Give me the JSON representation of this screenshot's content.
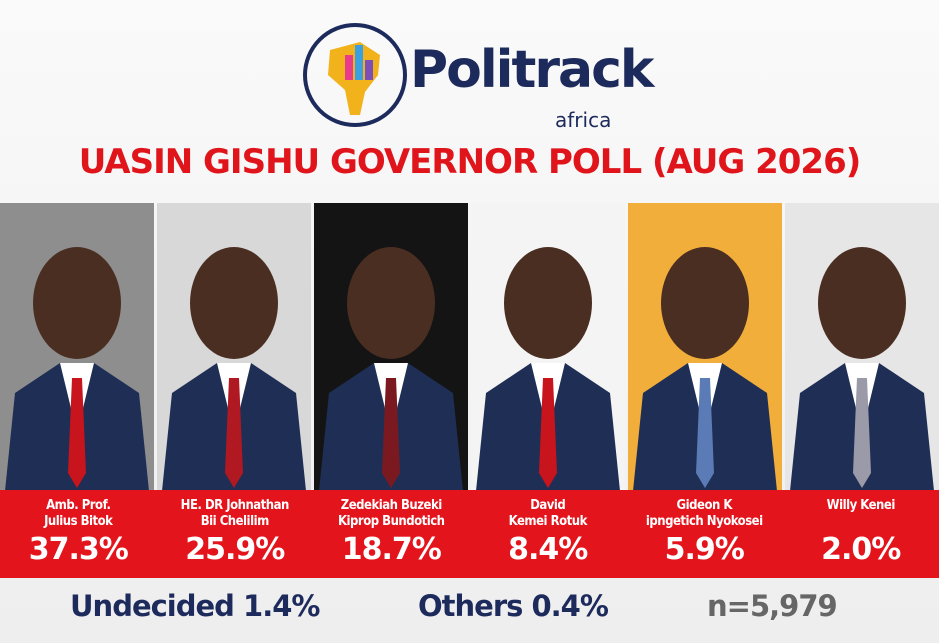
{
  "header": {
    "brand": "Politrack",
    "brand_sub": "africa",
    "title": "UASIN GISHU GOVERNOR POLL (AUG 2026)"
  },
  "candidates": [
    {
      "name": [
        "Amb. Prof.",
        "Julius Bitok"
      ],
      "share": "37.3%"
    },
    {
      "name": [
        "HE. DR Johnathan",
        "Bii Chelilim"
      ],
      "share": "25.9%"
    },
    {
      "name": [
        "Zedekiah Buzeki",
        "Kiprop Bundotich"
      ],
      "share": "18.7%"
    },
    {
      "name": [
        "David",
        "Kemei Rotuk"
      ],
      "share": "8.4%"
    },
    {
      "name": [
        "Gideon K",
        "ipngetich Nyokosei"
      ],
      "share": "5.9%"
    },
    {
      "name": [
        "Willy Kenei"
      ],
      "share": "2.0%"
    }
  ],
  "footer": {
    "undecided": "Undecided 1.4%",
    "others": "Others 0.4%",
    "sample": "n=5,979"
  }
}
